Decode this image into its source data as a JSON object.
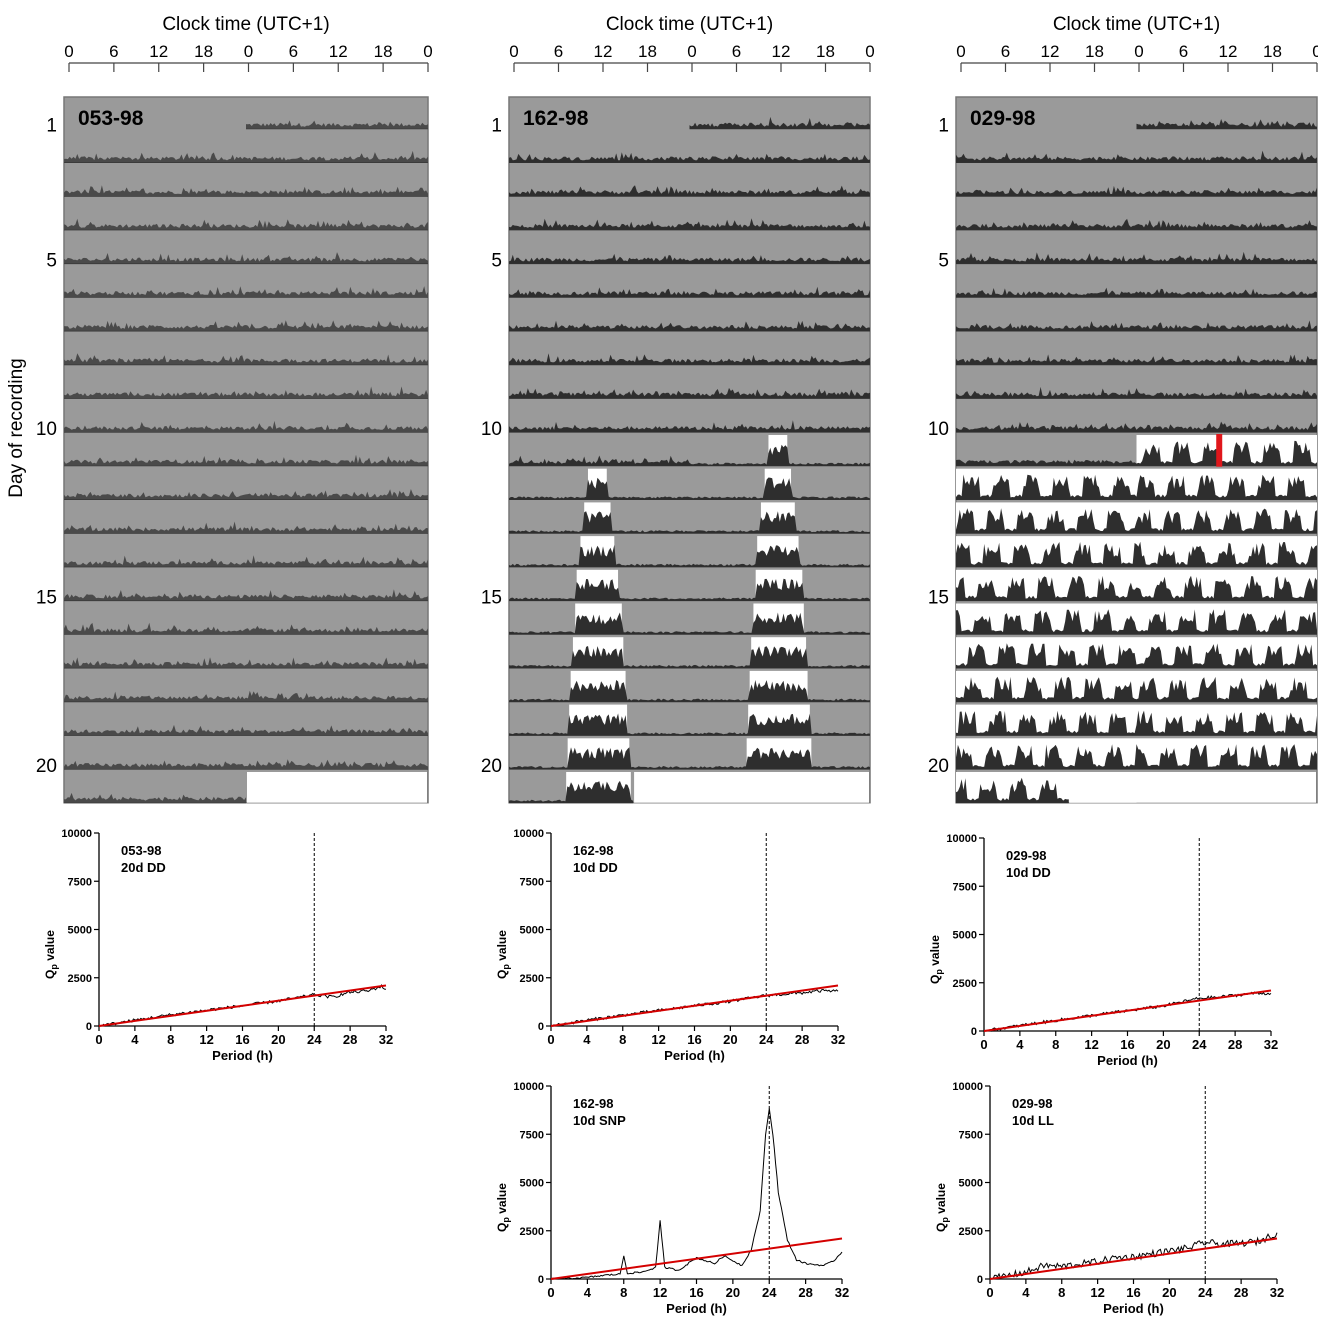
{
  "figure": {
    "y_axis_label": "Day of recording",
    "clock_axis_title": "Clock time (UTC+1)",
    "clock_ticks": [
      "0",
      "6",
      "12",
      "18",
      "0",
      "6",
      "12",
      "18",
      "0"
    ],
    "day_labels": [
      "1",
      "5",
      "10",
      "15",
      "20"
    ],
    "colors": {
      "dark": "#9a9a9a",
      "light": "#ffffff",
      "activity": "#2e2e2e",
      "activity_dd": "#4a4a4a",
      "chi_line": "#d40000",
      "periodogram": "#000000",
      "light_onset_marker": "#e0161b"
    }
  },
  "chart_data": [
    {
      "type": "actogram",
      "label": "053-98",
      "days": 20,
      "plot": "double-plotted 48 h",
      "lighting": [
        {
          "condition": "DD",
          "from_day": 1,
          "to_day": 20
        }
      ],
      "activity_level": "low, sparse"
    },
    {
      "type": "actogram",
      "label": "162-98",
      "days": 20,
      "plot": "double-plotted 48 h",
      "lighting": [
        {
          "condition": "DD",
          "from_day": 1,
          "to_day": 10
        },
        {
          "condition": "SNP",
          "from_day": 10,
          "to_day": 20,
          "light_windows_clock_h": [
            [
              10.5,
              13.0
            ],
            [
              10.0,
              13.5
            ],
            [
              9.5,
              14.0
            ],
            [
              9.0,
              14.5
            ],
            [
              8.8,
              15.0
            ],
            [
              8.5,
              15.2
            ],
            [
              8.2,
              15.5
            ],
            [
              8.0,
              15.7
            ],
            [
              7.8,
              16.0
            ],
            [
              7.6,
              16.2
            ]
          ]
        }
      ],
      "activity_level": "low, concentrated in light windows"
    },
    {
      "type": "actogram",
      "label": "029-98",
      "days": 20,
      "plot": "double-plotted 48 h",
      "lighting": [
        {
          "condition": "DD",
          "from_day": 1,
          "to_day": 10
        },
        {
          "condition": "LL",
          "from_day": 10,
          "to_day": 20
        }
      ],
      "light_onset_clock_h": 11,
      "activity_level": "high in LL"
    },
    {
      "type": "periodogram",
      "title_lines": [
        "053-98",
        "20d DD"
      ],
      "xlabel": "Period (h)",
      "ylabel": "Q",
      "ylabel_sub": "p",
      "ylabel_tail": " value",
      "xlim": [
        0,
        32
      ],
      "ylim": [
        0,
        10000
      ],
      "xticks": [
        "0",
        "4",
        "8",
        "12",
        "16",
        "20",
        "24",
        "28",
        "32"
      ],
      "yticks": [
        "0",
        "2500",
        "5000",
        "7500",
        "10000"
      ],
      "ref_line_x": 24,
      "significance_line": [
        [
          0,
          0
        ],
        [
          32,
          2100
        ]
      ],
      "qp_points": [
        [
          0,
          0
        ],
        [
          4,
          300
        ],
        [
          8,
          580
        ],
        [
          12,
          820
        ],
        [
          16,
          1050
        ],
        [
          20,
          1300
        ],
        [
          22,
          1450
        ],
        [
          24,
          1620
        ],
        [
          26,
          1500
        ],
        [
          28,
          1750
        ],
        [
          30,
          1820
        ],
        [
          31.5,
          2050
        ],
        [
          32,
          1900
        ]
      ]
    },
    {
      "type": "periodogram",
      "title_lines": [
        "162-98",
        "10d DD"
      ],
      "xlabel": "Period (h)",
      "ylabel": "Q",
      "ylabel_sub": "p",
      "ylabel_tail": " value",
      "xlim": [
        0,
        32
      ],
      "ylim": [
        0,
        10000
      ],
      "xticks": [
        "0",
        "4",
        "8",
        "12",
        "16",
        "20",
        "24",
        "28",
        "32"
      ],
      "yticks": [
        "0",
        "2500",
        "5000",
        "7500",
        "10000"
      ],
      "ref_line_x": 24,
      "significance_line": [
        [
          0,
          0
        ],
        [
          32,
          2100
        ]
      ],
      "qp_points": [
        [
          0,
          0
        ],
        [
          4,
          300
        ],
        [
          8,
          560
        ],
        [
          12,
          800
        ],
        [
          16,
          1050
        ],
        [
          20,
          1280
        ],
        [
          24,
          1580
        ],
        [
          26,
          1650
        ],
        [
          28,
          1720
        ],
        [
          30,
          1820
        ],
        [
          32,
          1800
        ]
      ]
    },
    {
      "type": "periodogram",
      "title_lines": [
        "162-98",
        "10d SNP"
      ],
      "xlabel": "Period (h)",
      "ylabel": "Q",
      "ylabel_sub": "p",
      "ylabel_tail": " value",
      "xlim": [
        0,
        32
      ],
      "ylim": [
        0,
        10000
      ],
      "xticks": [
        "0",
        "4",
        "8",
        "12",
        "16",
        "20",
        "24",
        "28",
        "32"
      ],
      "yticks": [
        "0",
        "2500",
        "5000",
        "7500",
        "10000"
      ],
      "ref_line_x": 24,
      "significance_line": [
        [
          0,
          0
        ],
        [
          32,
          2100
        ]
      ],
      "qp_points": [
        [
          0,
          0
        ],
        [
          2,
          30
        ],
        [
          4,
          80
        ],
        [
          6,
          200
        ],
        [
          7.6,
          250
        ],
        [
          8,
          1200
        ],
        [
          8.4,
          300
        ],
        [
          10,
          350
        ],
        [
          11.5,
          600
        ],
        [
          12,
          3000
        ],
        [
          12.5,
          600
        ],
        [
          14,
          450
        ],
        [
          16,
          1100
        ],
        [
          18,
          800
        ],
        [
          19,
          1200
        ],
        [
          20,
          950
        ],
        [
          21,
          700
        ],
        [
          22,
          1500
        ],
        [
          23,
          3500
        ],
        [
          23.6,
          7500
        ],
        [
          24,
          8800
        ],
        [
          24.4,
          7500
        ],
        [
          25,
          4500
        ],
        [
          26,
          2000
        ],
        [
          27,
          1000
        ],
        [
          28,
          800
        ],
        [
          30,
          700
        ],
        [
          31,
          900
        ],
        [
          32,
          1400
        ]
      ]
    },
    {
      "type": "periodogram",
      "title_lines": [
        "029-98",
        "10d DD"
      ],
      "xlabel": "Period (h)",
      "ylabel": "Q",
      "ylabel_sub": "p",
      "ylabel_tail": " value",
      "xlim": [
        0,
        32
      ],
      "ylim": [
        0,
        10000
      ],
      "xticks": [
        "0",
        "4",
        "8",
        "12",
        "16",
        "20",
        "24",
        "28",
        "32"
      ],
      "yticks": [
        "0",
        "2500",
        "5000",
        "7500",
        "10000"
      ],
      "ref_line_x": 24,
      "significance_line": [
        [
          0,
          0
        ],
        [
          32,
          2100
        ]
      ],
      "qp_points": [
        [
          0,
          0
        ],
        [
          4,
          280
        ],
        [
          8,
          550
        ],
        [
          12,
          800
        ],
        [
          16,
          1050
        ],
        [
          20,
          1300
        ],
        [
          24,
          1700
        ],
        [
          26,
          1750
        ],
        [
          28,
          1850
        ],
        [
          30,
          1950
        ],
        [
          32,
          1950
        ]
      ]
    },
    {
      "type": "periodogram",
      "title_lines": [
        "029-98",
        "10d LL"
      ],
      "xlabel": "Period (h)",
      "ylabel": "Q",
      "ylabel_sub": "p",
      "ylabel_tail": " value",
      "xlim": [
        0,
        32
      ],
      "ylim": [
        0,
        10000
      ],
      "xticks": [
        "0",
        "4",
        "8",
        "12",
        "16",
        "20",
        "24",
        "28",
        "32"
      ],
      "yticks": [
        "0",
        "2500",
        "5000",
        "7500",
        "10000"
      ],
      "ref_line_x": 24,
      "significance_line": [
        [
          0,
          0
        ],
        [
          32,
          2100
        ]
      ],
      "qp_points": [
        [
          0,
          0
        ],
        [
          4,
          350
        ],
        [
          6,
          700
        ],
        [
          8,
          650
        ],
        [
          12,
          900
        ],
        [
          14,
          1100
        ],
        [
          16,
          1150
        ],
        [
          18,
          1300
        ],
        [
          20,
          1450
        ],
        [
          22,
          1600
        ],
        [
          24,
          1900
        ],
        [
          26,
          1800
        ],
        [
          28,
          1850
        ],
        [
          30,
          1950
        ],
        [
          32,
          2400
        ]
      ]
    }
  ]
}
